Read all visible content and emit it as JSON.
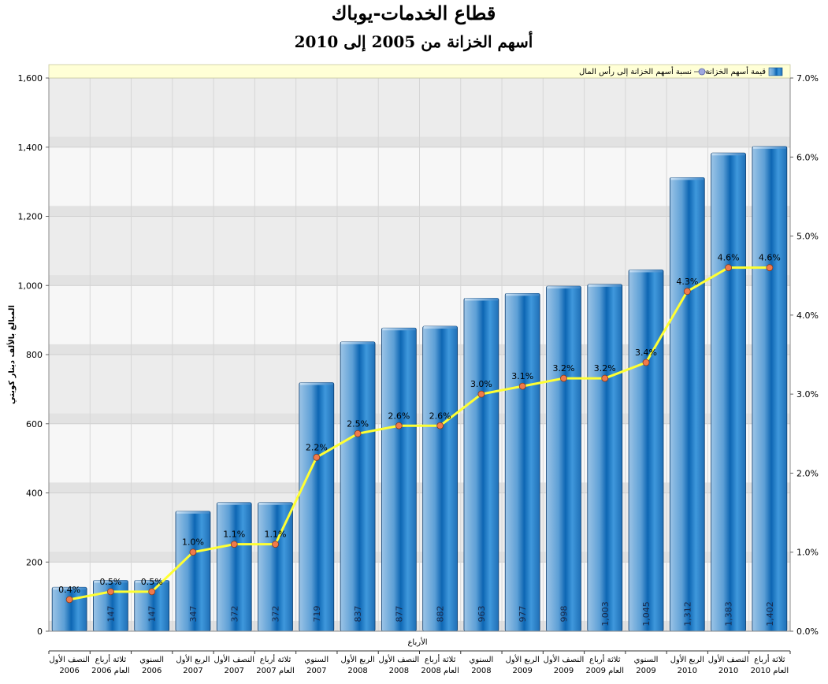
{
  "chart_data": {
    "type": "bar",
    "title": "قطاع الخدمات-يوباك",
    "subtitle": "أسهم الخزانة من 2005 إلى 2010",
    "xlabel": "الأرباع",
    "ylabel": "المبالغ بالألف دينار كويتي",
    "ylim": [
      0,
      1600
    ],
    "y_ticks": [
      "0",
      "200",
      "400",
      "600",
      "800",
      "1,000",
      "1,200",
      "1,400",
      "1,600"
    ],
    "y2lim": [
      0,
      7
    ],
    "y2_ticks": [
      "0.0%",
      "1.0%",
      "2.0%",
      "3.0%",
      "4.0%",
      "5.0%",
      "6.0%",
      "7.0%"
    ],
    "legend_position": "top-right",
    "grid": true,
    "categories": [
      {
        "line1": "النصف الأول",
        "line2": "2006"
      },
      {
        "line1": "ثلاثة أرباع",
        "line2": "العام 2006"
      },
      {
        "line1": "السنوي",
        "line2": "2006"
      },
      {
        "line1": "الربع الأول",
        "line2": "2007"
      },
      {
        "line1": "النصف الأول",
        "line2": "2007"
      },
      {
        "line1": "ثلاثة أرباع",
        "line2": "العام 2007"
      },
      {
        "line1": "السنوي",
        "line2": "2007"
      },
      {
        "line1": "الربع الأول",
        "line2": "2008"
      },
      {
        "line1": "النصف الأول",
        "line2": "2008"
      },
      {
        "line1": "ثلاثة أرباع",
        "line2": "العام 2008"
      },
      {
        "line1": "السنوي",
        "line2": "2008"
      },
      {
        "line1": "الربع الأول",
        "line2": "2009"
      },
      {
        "line1": "النصف الأول",
        "line2": "2009"
      },
      {
        "line1": "ثلاثة أرباع",
        "line2": "العام 2009"
      },
      {
        "line1": "السنوي",
        "line2": "2009"
      },
      {
        "line1": "الربع الأول",
        "line2": "2010"
      },
      {
        "line1": "النصف الأول",
        "line2": "2010"
      },
      {
        "line1": "ثلاثة أرباع",
        "line2": "العام 2010"
      }
    ],
    "series": [
      {
        "name": "قيمة أسهم الخزانة",
        "type": "bar",
        "axis": "left",
        "color": "#2f86c8",
        "values": [
          127,
          147,
          147,
          347,
          372,
          372,
          719,
          837,
          877,
          882,
          963,
          977,
          998,
          1003,
          1045,
          1312,
          1383,
          1402
        ],
        "labels": [
          "",
          "147",
          "147",
          "347",
          "372",
          "372",
          "719",
          "837",
          "877",
          "882",
          "963",
          "977",
          "998",
          "1,003",
          "1,045",
          "1,312",
          "1,383",
          "1,402"
        ]
      },
      {
        "name": "نسبة أسهم الخزانة إلى رأس المال",
        "type": "line",
        "axis": "right",
        "color": "#ffff33",
        "marker_color": "#f07a4a",
        "values": [
          0.4,
          0.5,
          0.5,
          1.0,
          1.1,
          1.1,
          2.2,
          2.5,
          2.6,
          2.6,
          3.0,
          3.1,
          3.2,
          3.2,
          3.4,
          4.3,
          4.6,
          4.6
        ],
        "labels": [
          "0.4%",
          "0.5%",
          "0.5%",
          "1.0%",
          "1.1%",
          "1.1%",
          "2.2%",
          "2.5%",
          "2.6%",
          "2.6%",
          "3.0%",
          "3.1%",
          "3.2%",
          "3.2%",
          "3.4%",
          "4.3%",
          "4.6%",
          "4.6%"
        ]
      }
    ]
  }
}
